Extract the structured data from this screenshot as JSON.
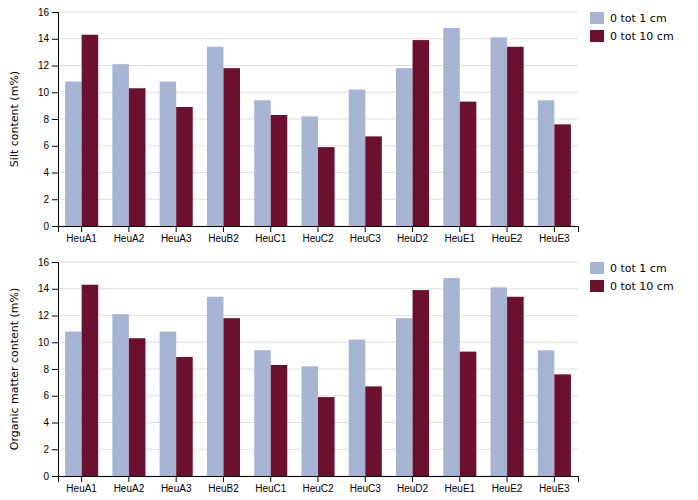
{
  "chart_data": [
    {
      "type": "bar",
      "categories": [
        "HeuA1",
        "HeuA2",
        "HeuA3",
        "HeuB2",
        "HeuC1",
        "HeuC2",
        "HeuC3",
        "HeuD2",
        "HeuE1",
        "HeuE2",
        "HeuE3"
      ],
      "series": [
        {
          "name": "0 tot 1 cm",
          "color": "#a8b4d4",
          "values": [
            10.8,
            12.1,
            10.8,
            13.4,
            9.4,
            8.2,
            10.2,
            11.8,
            14.8,
            14.1,
            9.4
          ]
        },
        {
          "name": "0 tot 10 cm",
          "color": "#6b1030",
          "values": [
            14.3,
            10.3,
            8.9,
            11.8,
            8.3,
            5.9,
            6.7,
            13.9,
            9.3,
            13.4,
            7.6
          ]
        }
      ],
      "ylabel": "Silt content (m%)",
      "ylim": [
        0,
        16
      ],
      "yticks": [
        0,
        2,
        4,
        6,
        8,
        10,
        12,
        14,
        16
      ],
      "grid": true,
      "legend": "upper right"
    },
    {
      "type": "bar",
      "categories": [
        "HeuA1",
        "HeuA2",
        "HeuA3",
        "HeuB2",
        "HeuC1",
        "HeuC2",
        "HeuC3",
        "HeuD2",
        "HeuE1",
        "HeuE2",
        "HeuE3"
      ],
      "series": [
        {
          "name": "0 tot 1 cm",
          "color": "#a8b4d4",
          "values": [
            10.8,
            12.1,
            10.8,
            13.4,
            9.4,
            8.2,
            10.2,
            11.8,
            14.8,
            14.1,
            9.4
          ]
        },
        {
          "name": "0 tot 10 cm",
          "color": "#6b1030",
          "values": [
            14.3,
            10.3,
            8.9,
            11.8,
            8.3,
            5.9,
            6.7,
            13.9,
            9.3,
            13.4,
            7.6
          ]
        }
      ],
      "ylabel": "Organic matter content (m%)",
      "ylim": [
        0,
        16
      ],
      "yticks": [
        0,
        2,
        4,
        6,
        8,
        10,
        12,
        14,
        16
      ],
      "grid": true,
      "legend": "upper right"
    }
  ]
}
